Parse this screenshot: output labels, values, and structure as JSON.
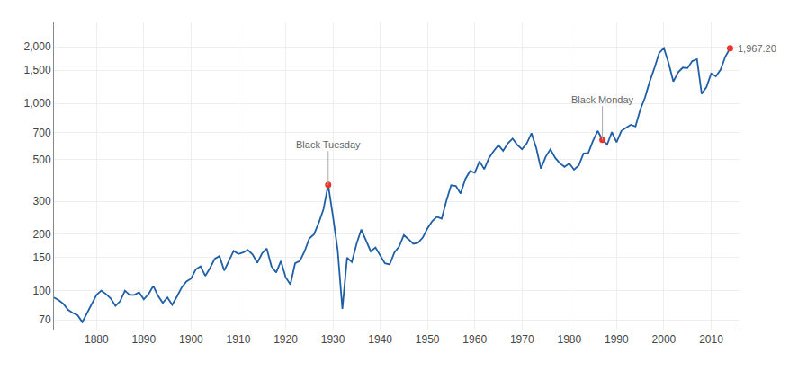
{
  "chart_data": {
    "type": "line",
    "log": "y",
    "grid": true,
    "color": "#1f5fa6",
    "x": [
      1871,
      1872,
      1873,
      1874,
      1875,
      1876,
      1877,
      1878,
      1879,
      1880,
      1881,
      1882,
      1883,
      1884,
      1885,
      1886,
      1887,
      1888,
      1889,
      1890,
      1891,
      1892,
      1893,
      1894,
      1895,
      1896,
      1897,
      1898,
      1899,
      1900,
      1901,
      1902,
      1903,
      1904,
      1905,
      1906,
      1907,
      1908,
      1909,
      1910,
      1911,
      1912,
      1913,
      1914,
      1915,
      1916,
      1917,
      1918,
      1919,
      1920,
      1921,
      1922,
      1923,
      1924,
      1925,
      1926,
      1927,
      1928,
      1929,
      1930,
      1931,
      1932,
      1933,
      1934,
      1935,
      1936,
      1937,
      1938,
      1939,
      1940,
      1941,
      1942,
      1943,
      1944,
      1945,
      1946,
      1947,
      1948,
      1949,
      1950,
      1951,
      1952,
      1953,
      1954,
      1955,
      1956,
      1957,
      1958,
      1959,
      1960,
      1961,
      1962,
      1963,
      1964,
      1965,
      1966,
      1967,
      1968,
      1969,
      1970,
      1971,
      1972,
      1973,
      1974,
      1975,
      1976,
      1977,
      1978,
      1979,
      1980,
      1981,
      1982,
      1983,
      1984,
      1985,
      1986,
      1987,
      1988,
      1989,
      1990,
      1991,
      1992,
      1993,
      1994,
      1995,
      1996,
      1997,
      1998,
      1999,
      2000,
      2001,
      2002,
      2003,
      2004,
      2005,
      2006,
      2007,
      2008,
      2009,
      2010,
      2011,
      2012,
      2013,
      2014
    ],
    "values": [
      92,
      89,
      85,
      79,
      76,
      74,
      68,
      76,
      86,
      95,
      100,
      96,
      91,
      83,
      88,
      100,
      95,
      95,
      98,
      90,
      96,
      106,
      94,
      86,
      92,
      84,
      93,
      104,
      112,
      116,
      130,
      135,
      120,
      132,
      148,
      153,
      128,
      144,
      163,
      157,
      160,
      165,
      156,
      141,
      158,
      168,
      135,
      125,
      144,
      118,
      108,
      140,
      144,
      162,
      190,
      200,
      230,
      272,
      367,
      250,
      165,
      80,
      150,
      142,
      178,
      212,
      185,
      162,
      170,
      155,
      140,
      138,
      160,
      172,
      198,
      188,
      178,
      180,
      192,
      215,
      235,
      248,
      242,
      302,
      365,
      362,
      330,
      394,
      435,
      426,
      490,
      445,
      510,
      556,
      598,
      558,
      612,
      648,
      600,
      568,
      612,
      692,
      578,
      448,
      518,
      568,
      512,
      478,
      458,
      478,
      442,
      466,
      540,
      542,
      630,
      712,
      638,
      602,
      702,
      620,
      712,
      740,
      768,
      752,
      924,
      1072,
      1305,
      1542,
      1852,
      1972,
      1638,
      1306,
      1462,
      1550,
      1540,
      1678,
      1718,
      1122,
      1218,
      1442,
      1392,
      1512,
      1775,
      1967
    ],
    "xlim": [
      1871,
      2016
    ],
    "xticks": [
      1880,
      1890,
      1900,
      1910,
      1920,
      1930,
      1940,
      1950,
      1960,
      1970,
      1980,
      1990,
      2000,
      2010
    ],
    "ylim": [
      62,
      2700
    ],
    "yticks": [
      70,
      100,
      150,
      200,
      300,
      500,
      700,
      {
        "value": 1000,
        "label": "1,000"
      },
      {
        "value": 1500,
        "label": "1,500"
      },
      {
        "value": 2000,
        "label": "2,000"
      }
    ],
    "annotations": [
      {
        "text": "Black Tuesday",
        "x": 1929,
        "y": 367,
        "color": "#e8342a"
      },
      {
        "text": "Black Monday",
        "x": 1987,
        "y": 638,
        "color": "#e8342a"
      },
      {
        "text": "1,967.20",
        "x": 2014,
        "y": 1967,
        "color": "#e8342a"
      }
    ]
  }
}
